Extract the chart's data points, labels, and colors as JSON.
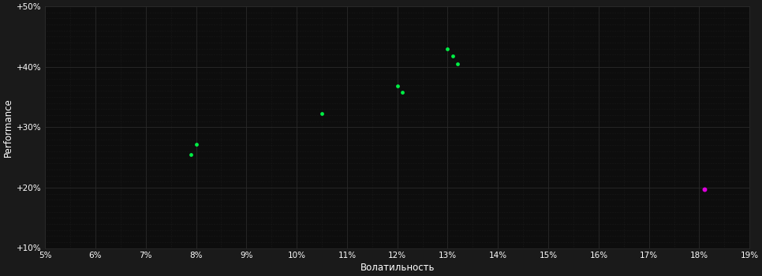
{
  "background_color": "#1a1a1a",
  "plot_bg_color": "#0d0d0d",
  "grid_color": "#333333",
  "text_color": "#ffffff",
  "xlabel": "Волатильность",
  "ylabel": "Performance",
  "xlim": [
    0.05,
    0.19
  ],
  "ylim": [
    0.1,
    0.5
  ],
  "xticks": [
    0.05,
    0.06,
    0.07,
    0.08,
    0.09,
    0.1,
    0.11,
    0.12,
    0.13,
    0.14,
    0.15,
    0.16,
    0.17,
    0.18,
    0.19
  ],
  "yticks": [
    0.1,
    0.2,
    0.3,
    0.4,
    0.5
  ],
  "ytick_labels": [
    "+10%",
    "+20%",
    "+30%",
    "+40%",
    "+50%"
  ],
  "xtick_labels": [
    "5%",
    "6%",
    "7%",
    "8%",
    "9%",
    "10%",
    "11%",
    "12%",
    "13%",
    "14%",
    "15%",
    "16%",
    "17%",
    "18%",
    "19%"
  ],
  "green_points": [
    [
      0.08,
      0.272
    ],
    [
      0.079,
      0.255
    ],
    [
      0.105,
      0.323
    ],
    [
      0.12,
      0.368
    ],
    [
      0.121,
      0.358
    ],
    [
      0.13,
      0.43
    ],
    [
      0.131,
      0.418
    ],
    [
      0.132,
      0.405
    ]
  ],
  "magenta_points": [
    [
      0.181,
      0.197
    ]
  ],
  "green_color": "#00ee44",
  "magenta_color": "#dd00dd",
  "marker_size": 12
}
